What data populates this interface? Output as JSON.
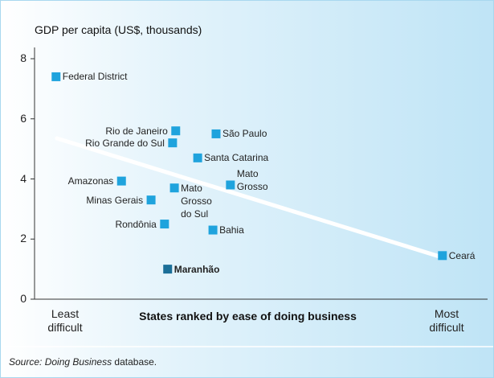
{
  "chart_data": {
    "type": "scatter",
    "y_title": "GDP per capita (US$, thousands)",
    "x_title": "States ranked by ease of doing business",
    "x_end_labels": [
      "Least difficult",
      "Most difficult"
    ],
    "source_italic": "Source: Doing Business",
    "source": "database.",
    "names": [
      "Federal District",
      "Amazonas",
      "Minas Gerais",
      "Rondônia",
      "Mato Grosso do Sul",
      "Rio de Janeiro",
      "Rio Grande do Sul",
      "Maranhão",
      "Santa Catarina",
      "Bahia",
      "São Paulo",
      "Mato Grosso",
      "Ceará"
    ],
    "x": [
      4.8,
      19.4,
      26.0,
      29.0,
      31.2,
      31.5,
      30.8,
      29.7,
      36.4,
      39.8,
      40.5,
      43.7,
      91.0
    ],
    "values": [
      7.4,
      3.93,
      3.3,
      2.5,
      3.7,
      5.6,
      5.2,
      1.0,
      4.7,
      2.3,
      5.5,
      3.8,
      1.45
    ],
    "color": "#1fa3dd",
    "colors": [
      "#1fa3dd",
      "#1fa3dd",
      "#1fa3dd",
      "#1fa3dd",
      "#1fa3dd",
      "#1fa3dd",
      "#1fa3dd",
      "#1b6f98",
      "#1fa3dd",
      "#1fa3dd",
      "#1fa3dd",
      "#1fa3dd",
      "#1fa3dd"
    ],
    "trendline": {
      "x": [
        5,
        91
      ],
      "y": [
        5.35,
        1.39
      ]
    },
    "xlim": [
      0,
      100
    ],
    "ylim": [
      0,
      8
    ],
    "yticks": [
      0,
      2,
      4,
      6,
      8
    ]
  }
}
